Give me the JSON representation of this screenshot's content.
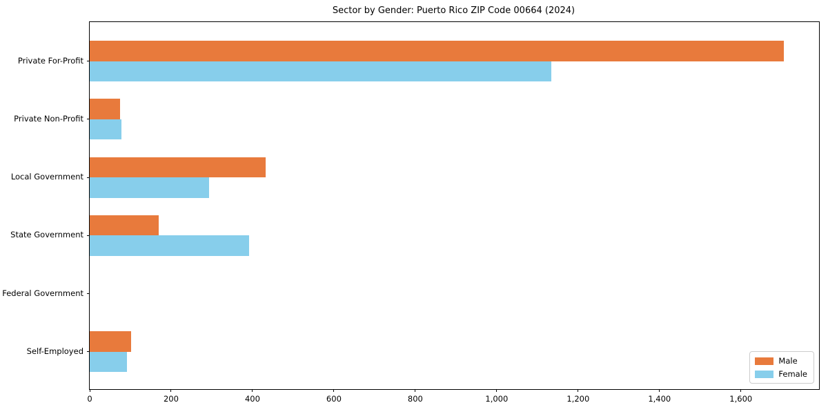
{
  "title": "Sector by Gender: Puerto Rico ZIP Code 00664 (2024)",
  "colors": {
    "male": "#e87a3c",
    "female": "#87ceeb",
    "axis": "#000000",
    "legend_border": "#cccccc",
    "background": "#ffffff"
  },
  "legend": {
    "position": "lower right",
    "items": [
      {
        "label": "Male",
        "color": "#e87a3c"
      },
      {
        "label": "Female",
        "color": "#87ceeb"
      }
    ]
  },
  "chart_data": {
    "type": "bar",
    "orientation": "horizontal",
    "title": "Sector by Gender: Puerto Rico ZIP Code 00664 (2024)",
    "categories": [
      "Private For-Profit",
      "Private Non-Profit",
      "Local Government",
      "State Government",
      "Federal Government",
      "Self-Employed"
    ],
    "series": [
      {
        "name": "Male",
        "color": "#e87a3c",
        "values": [
          1706,
          74,
          432,
          170,
          0,
          101
        ]
      },
      {
        "name": "Female",
        "color": "#87ceeb",
        "values": [
          1134,
          78,
          293,
          392,
          0,
          92
        ]
      }
    ],
    "xlabel": "",
    "ylabel": "",
    "xlim": [
      0,
      1792
    ],
    "x_ticks": [
      0,
      200,
      400,
      600,
      800,
      1000,
      1200,
      1400,
      1600
    ],
    "x_tick_labels": [
      "0",
      "200",
      "400",
      "600",
      "800",
      "1,000",
      "1,200",
      "1,400",
      "1,600"
    ],
    "grid": false,
    "legend_position": "lower right"
  }
}
